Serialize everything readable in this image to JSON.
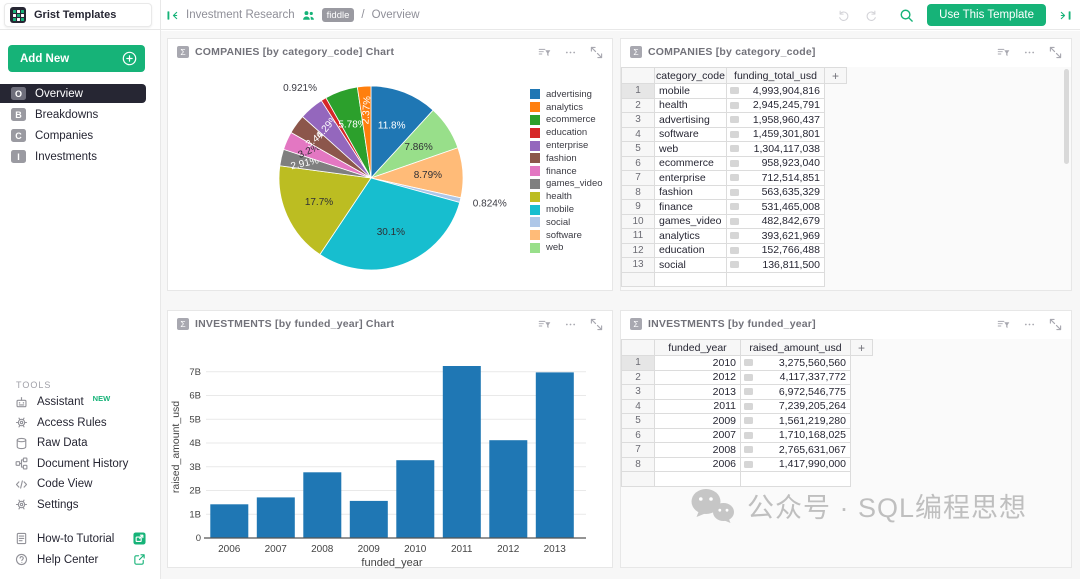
{
  "topbar": {
    "logo_text": "Grist Templates",
    "breadcrumb": {
      "workspace": "Investment Research",
      "doc_badge": "fiddle",
      "separator": "/",
      "page": "Overview"
    },
    "buttons": {
      "use_template": "Use This Template"
    }
  },
  "sidebar": {
    "add_new_label": "Add New",
    "pages": [
      {
        "initial": "O",
        "label": "Overview",
        "selected": true
      },
      {
        "initial": "B",
        "label": "Breakdowns",
        "selected": false
      },
      {
        "initial": "C",
        "label": "Companies",
        "selected": false
      },
      {
        "initial": "I",
        "label": "Investments",
        "selected": false
      }
    ],
    "tools_heading": "TOOLS",
    "tools": [
      {
        "icon": "robot-icon",
        "label": "Assistant",
        "badge": "NEW"
      },
      {
        "icon": "gear-icon",
        "label": "Access Rules"
      },
      {
        "icon": "database-icon",
        "label": "Raw Data"
      },
      {
        "icon": "history-icon",
        "label": "Document History"
      },
      {
        "icon": "code-icon",
        "label": "Code View"
      },
      {
        "icon": "settings-icon",
        "label": "Settings"
      }
    ],
    "footer_links": [
      {
        "icon": "tutorial-icon",
        "label": "How-to Tutorial",
        "trailing": "video-popout-icon"
      },
      {
        "icon": "help-icon",
        "label": "Help Center",
        "trailing": "external-link-icon"
      }
    ]
  },
  "widgets": {
    "pie": {
      "title": "COMPANIES [by category_code] Chart",
      "type_glyph": "Σ"
    },
    "companies": {
      "title": "COMPANIES [by category_code]",
      "type_glyph": "Σ",
      "columns": [
        "category_code",
        "funding_total_usd"
      ],
      "add_column_label": "+",
      "cursor_row": 1,
      "rows": [
        [
          "mobile",
          "4,993,904,816"
        ],
        [
          "health",
          "2,945,245,791"
        ],
        [
          "advertising",
          "1,958,960,437"
        ],
        [
          "software",
          "1,459,301,801"
        ],
        [
          "web",
          "1,304,117,038"
        ],
        [
          "ecommerce",
          "958,923,040"
        ],
        [
          "enterprise",
          "712,514,851"
        ],
        [
          "fashion",
          "563,635,329"
        ],
        [
          "finance",
          "531,465,008"
        ],
        [
          "games_video",
          "482,842,679"
        ],
        [
          "analytics",
          "393,621,969"
        ],
        [
          "education",
          "152,766,488"
        ],
        [
          "social",
          "136,811,500"
        ]
      ]
    },
    "bar": {
      "title": "INVESTMENTS [by funded_year] Chart",
      "type_glyph": "Σ"
    },
    "investments": {
      "title": "INVESTMENTS [by funded_year]",
      "type_glyph": "Σ",
      "columns": [
        "funded_year",
        "raised_amount_usd"
      ],
      "add_column_label": "+",
      "cursor_row": 1,
      "rows": [
        [
          "2010",
          "3,275,560,560"
        ],
        [
          "2012",
          "4,117,337,772"
        ],
        [
          "2013",
          "6,972,546,775"
        ],
        [
          "2011",
          "7,239,205,264"
        ],
        [
          "2009",
          "1,561,219,280"
        ],
        [
          "2007",
          "1,710,168,025"
        ],
        [
          "2008",
          "2,765,631,067"
        ],
        [
          "2006",
          "1,417,990,000"
        ]
      ]
    }
  },
  "chart_data": [
    {
      "type": "pie",
      "title": "COMPANIES [by category_code] Chart",
      "legend_position": "right",
      "slices_clockwise_from_top": [
        {
          "label": "advertising",
          "value": 1958960437,
          "pct": "11.8%",
          "color": "#1f77b4",
          "text_color": "#ffffff"
        },
        {
          "label": "web",
          "value": 1304117038,
          "pct": "7.86%",
          "color": "#98df8a",
          "text_color": "#2f2f35"
        },
        {
          "label": "software",
          "value": 1459301801,
          "pct": "8.79%",
          "color": "#ffbb78",
          "text_color": "#2f2f35"
        },
        {
          "label": "social",
          "value": 136811500,
          "pct": "0.824%",
          "color": "#aec7e8",
          "text_color": "#3b3b43",
          "outside": true
        },
        {
          "label": "mobile",
          "value": 4993904816,
          "pct": "30.1%",
          "color": "#17becf",
          "text_color": "#2f2f35"
        },
        {
          "label": "health",
          "value": 2945245791,
          "pct": "17.7%",
          "color": "#bcbd22",
          "text_color": "#2f2f35"
        },
        {
          "label": "games_video",
          "value": 482842679,
          "pct": "2.91%",
          "color": "#7f7f7f",
          "text_color": "#ffffff"
        },
        {
          "label": "finance",
          "value": 531465008,
          "pct": "3.2%",
          "color": "#e377c2",
          "text_color": "#2f2f35"
        },
        {
          "label": "fashion",
          "value": 563635329,
          "pct": "3.4%",
          "color": "#8c564b",
          "text_color": "#ffffff"
        },
        {
          "label": "enterprise",
          "value": 712514851,
          "pct": "4.29%",
          "color": "#9467bd",
          "text_color": "#ffffff"
        },
        {
          "label": "education",
          "value": 152766488,
          "pct": "0.921%",
          "color": "#d62728",
          "text_color": "#3b3b43",
          "outside": true
        },
        {
          "label": "ecommerce",
          "value": 958923040,
          "pct": "5.78%",
          "color": "#2ca02c",
          "text_color": "#ffffff"
        },
        {
          "label": "analytics",
          "value": 393621969,
          "pct": "2.37%",
          "color": "#ff7f0e",
          "text_color": "#ffffff"
        }
      ],
      "legend": [
        "advertising",
        "analytics",
        "ecommerce",
        "education",
        "enterprise",
        "fashion",
        "finance",
        "games_video",
        "health",
        "mobile",
        "social",
        "software",
        "web"
      ]
    },
    {
      "type": "bar",
      "title": "INVESTMENTS [by funded_year] Chart",
      "categories": [
        "2006",
        "2007",
        "2008",
        "2009",
        "2010",
        "2011",
        "2012",
        "2013"
      ],
      "values": [
        1417990000,
        1710168025,
        2765631067,
        1561219280,
        3275560560,
        7239205264,
        4117337772,
        6972546775
      ],
      "xlabel": "funded_year",
      "ylabel": "raised_amount_usd",
      "yticks": [
        "0",
        "1B",
        "2B",
        "3B",
        "4B",
        "5B",
        "6B",
        "7B"
      ],
      "ylim": [
        0,
        7620000000
      ],
      "grid": true,
      "bar_color": "#1f77b4"
    }
  ],
  "watermark": {
    "text": "公众号 · SQL编程思想"
  },
  "colors": {
    "accent": "#16b378",
    "selected_bg": "#262633",
    "muted_text": "#929299",
    "panel_border": "#e7e7e7"
  }
}
